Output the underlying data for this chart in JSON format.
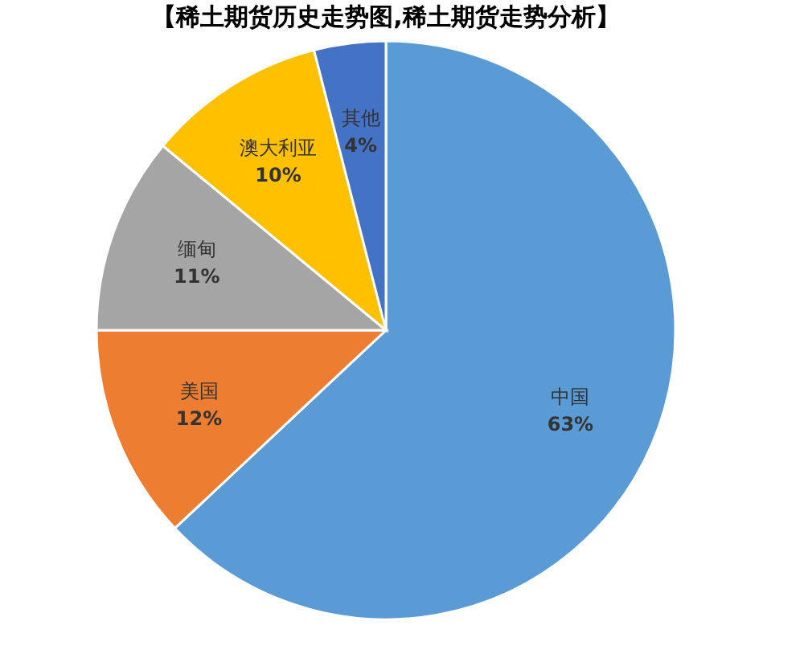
{
  "chart_data": {
    "type": "pie",
    "title": "【稀土期货历史走势图,稀土期货走势分析】",
    "categories": [
      "中国",
      "美国",
      "缅甸",
      "澳大利亚",
      "其他"
    ],
    "values": [
      63,
      12,
      11,
      10,
      4
    ],
    "colors": [
      "#5b9bd5",
      "#ed7d31",
      "#a5a5a5",
      "#ffc000",
      "#4472c4"
    ],
    "value_labels": [
      "63%",
      "12%",
      "11%",
      "10%",
      "4%"
    ],
    "legend": false
  }
}
